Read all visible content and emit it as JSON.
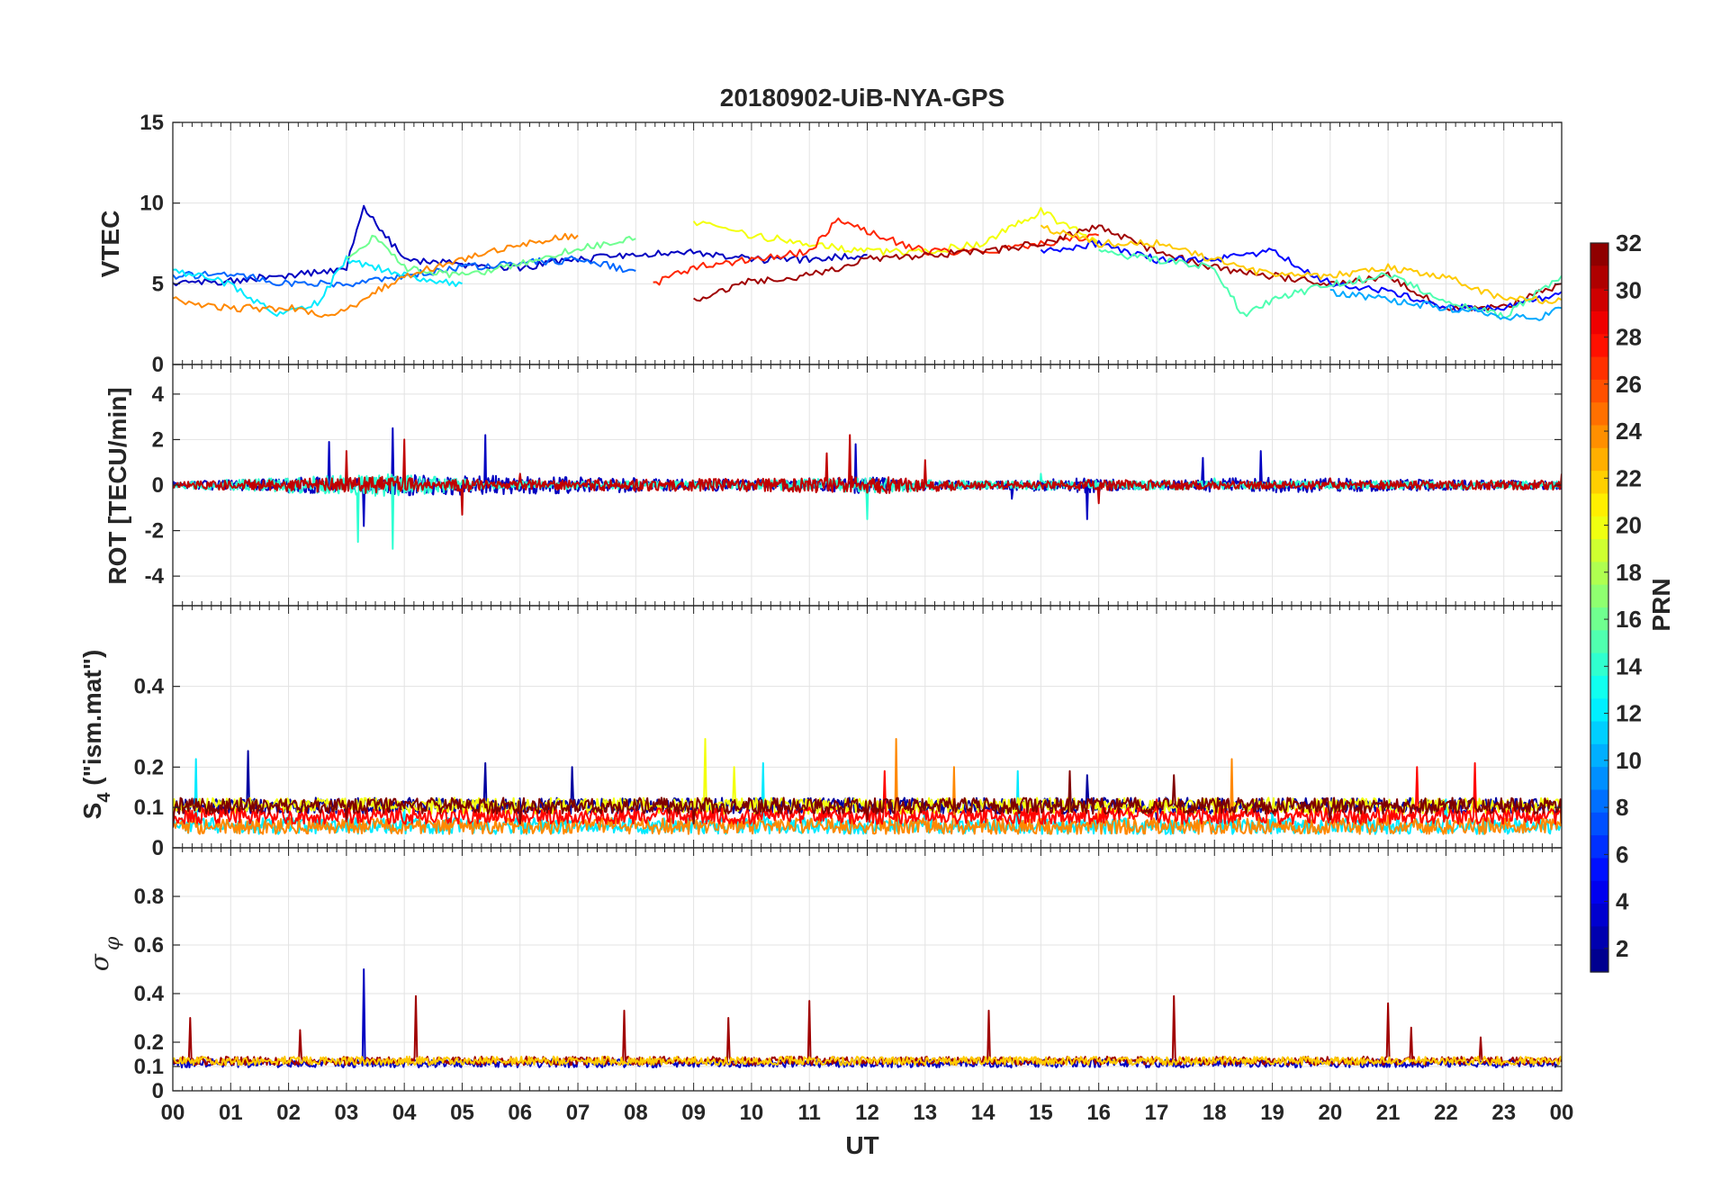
{
  "title": "20180902-UiB-NYA-GPS",
  "xlabel": "UT",
  "xticks": [
    "00",
    "01",
    "02",
    "03",
    "04",
    "05",
    "06",
    "07",
    "08",
    "09",
    "10",
    "11",
    "12",
    "13",
    "14",
    "15",
    "16",
    "17",
    "18",
    "19",
    "20",
    "21",
    "22",
    "23",
    "00"
  ],
  "colorbar": {
    "label": "PRN",
    "range": [
      1,
      32
    ],
    "ticks": [
      "2",
      "4",
      "6",
      "8",
      "10",
      "12",
      "14",
      "16",
      "18",
      "20",
      "22",
      "24",
      "26",
      "28",
      "30",
      "32"
    ],
    "colormap": "jet"
  },
  "chart_data": [
    {
      "type": "line",
      "panel": "VTEC",
      "ylabel": "VTEC",
      "ylim": [
        0,
        15
      ],
      "yticks": [
        "0",
        "5",
        "10",
        "15"
      ],
      "xlim": [
        0,
        24
      ],
      "grid": true,
      "series_note": "Multiple PRN traces colored by PRN number",
      "series": [
        {
          "prn": 3,
          "x": [
            0,
            1,
            2,
            3,
            3.3,
            4,
            5,
            6,
            7,
            8,
            9,
            10,
            11,
            12
          ],
          "values": [
            5.0,
            5.2,
            5.5,
            6.0,
            9.8,
            6.5,
            6.2,
            6.0,
            6.5,
            6.8,
            7.0,
            6.5,
            6.5,
            6.8
          ]
        },
        {
          "prn": 8,
          "x": [
            0,
            1,
            2,
            3,
            4,
            5,
            6,
            7,
            8
          ],
          "values": [
            5.5,
            5.6,
            5.0,
            5.0,
            5.5,
            6.0,
            6.3,
            6.5,
            5.8
          ]
        },
        {
          "prn": 12,
          "x": [
            0,
            1,
            1.8,
            2.5,
            3,
            4,
            5
          ],
          "values": [
            5.8,
            5.0,
            3.0,
            3.8,
            6.5,
            5.5,
            5.0
          ]
        },
        {
          "prn": 16,
          "x": [
            3,
            3.5,
            4,
            5,
            6,
            7,
            8
          ],
          "values": [
            6.5,
            8.0,
            6.0,
            5.5,
            6.2,
            7.2,
            7.8
          ]
        },
        {
          "prn": 20,
          "x": [
            9,
            10,
            11,
            12,
            13,
            14,
            15,
            15.5,
            16
          ],
          "values": [
            8.8,
            8.0,
            7.5,
            7.0,
            7.0,
            7.5,
            9.5,
            8.5,
            7.5
          ]
        },
        {
          "prn": 24,
          "x": [
            0,
            1,
            2,
            2.8,
            3.5,
            4,
            5,
            6,
            7
          ],
          "values": [
            4.0,
            3.5,
            3.5,
            3.0,
            4.5,
            5.5,
            6.5,
            7.5,
            8.0
          ]
        },
        {
          "prn": 27,
          "x": [
            8.3,
            9,
            10,
            11,
            11.5,
            12,
            13,
            14,
            15,
            16
          ],
          "values": [
            5.0,
            6.0,
            6.5,
            7.0,
            9.0,
            8.2,
            7.0,
            7.0,
            7.5,
            8.0
          ]
        },
        {
          "prn": 31,
          "x": [
            9,
            10,
            11,
            12,
            13,
            14,
            15,
            16,
            17,
            18,
            19,
            20,
            21,
            22,
            23,
            24
          ],
          "values": [
            4.0,
            5.2,
            5.5,
            6.5,
            6.8,
            7.0,
            7.5,
            8.5,
            7.0,
            6.0,
            5.5,
            5.0,
            5.5,
            3.5,
            3.5,
            5.0
          ]
        },
        {
          "prn": 5,
          "x": [
            15,
            16,
            17,
            18,
            19,
            20,
            21,
            22,
            23,
            24
          ],
          "values": [
            7.0,
            7.5,
            6.5,
            6.5,
            7.0,
            5.0,
            4.5,
            3.5,
            3.5,
            4.5
          ]
        },
        {
          "prn": 15,
          "x": [
            16,
            17,
            18,
            18.5,
            19,
            20,
            21,
            22,
            23,
            24
          ],
          "values": [
            7.0,
            6.5,
            6.0,
            3.0,
            4.0,
            5.0,
            5.5,
            4.0,
            3.0,
            5.5
          ]
        },
        {
          "prn": 22,
          "x": [
            15,
            16,
            17,
            18,
            19,
            20,
            21,
            22,
            23,
            24
          ],
          "values": [
            8.5,
            7.5,
            7.5,
            6.5,
            5.5,
            5.5,
            6.0,
            5.5,
            4.0,
            4.0
          ]
        },
        {
          "prn": 10,
          "x": [
            20,
            21,
            22,
            23,
            23.5,
            24
          ],
          "values": [
            4.5,
            4.0,
            3.5,
            3.0,
            2.8,
            3.5
          ]
        }
      ]
    },
    {
      "type": "line",
      "panel": "ROT",
      "ylabel": "ROT [TECU/min]",
      "ylim": [
        -5.3,
        5.3
      ],
      "yticks": [
        "-4",
        "-2",
        "0",
        "2",
        "4"
      ],
      "xlim": [
        0,
        24
      ],
      "grid": true,
      "series_note": "ROT fluctuations; enhanced 02-05 UT (peaks near ±2.5), 11-12 UT (~2), 15-16 UT (~-1.7)",
      "series": [
        {
          "prn": 3,
          "x": [
            0,
            2.7,
            3.3,
            3.8,
            5.4,
            11,
            11.8,
            14.5,
            15.8,
            17.8,
            18.8,
            24
          ],
          "values": [
            0,
            1.9,
            -1.8,
            2.5,
            2.2,
            0.3,
            1.8,
            -0.6,
            -1.5,
            1.2,
            1.5,
            0.2
          ]
        },
        {
          "prn": 14,
          "x": [
            0,
            3.2,
            3.8,
            6,
            9,
            12,
            15,
            18,
            21,
            24
          ],
          "values": [
            0,
            -2.5,
            -2.8,
            0.3,
            0.2,
            -1.5,
            0.5,
            0.3,
            0.2,
            0.2
          ]
        },
        {
          "prn": 30,
          "x": [
            0,
            3,
            4,
            5,
            6,
            11.3,
            11.7,
            13,
            16,
            20,
            24
          ],
          "values": [
            0,
            1.5,
            2.0,
            -1.3,
            0.5,
            1.4,
            2.2,
            1.1,
            -0.8,
            0.3,
            0.5
          ]
        }
      ]
    },
    {
      "type": "line",
      "panel": "S4",
      "ylabel": "S4 (\"ism.mat\")",
      "ylabel_main": "S",
      "ylabel_sub": "4",
      "ylabel_rest": " (\"ism.mat\")",
      "ylim": [
        0,
        0.6
      ],
      "yticks": [
        "0",
        "0.1",
        "0.2",
        "0.4"
      ],
      "xlim": [
        0,
        24
      ],
      "grid": true,
      "series_note": "Background ~0.05-0.1 with spikes to ~0.2-0.27",
      "series": [
        {
          "prn": 2,
          "x": [
            0,
            1.3,
            3,
            5.4,
            6.9,
            9,
            12,
            15.8,
            17,
            20,
            24
          ],
          "values": [
            0.05,
            0.24,
            0.08,
            0.21,
            0.2,
            0.07,
            0.08,
            0.18,
            0.07,
            0.07,
            0.06
          ]
        },
        {
          "prn": 12,
          "x": [
            0,
            0.4,
            2,
            4,
            6,
            9,
            10.2,
            13,
            14.6,
            16,
            19,
            22,
            24
          ],
          "values": [
            0.12,
            0.22,
            0.08,
            0.1,
            0.09,
            0.07,
            0.21,
            0.1,
            0.19,
            0.08,
            0.09,
            0.12,
            0.1
          ]
        },
        {
          "prn": 20,
          "x": [
            0,
            3,
            6,
            9.2,
            9.7,
            12,
            15,
            18,
            21,
            24
          ],
          "values": [
            0.07,
            0.09,
            0.06,
            0.27,
            0.2,
            0.07,
            0.1,
            0.08,
            0.09,
            0.07
          ]
        },
        {
          "prn": 24,
          "x": [
            0,
            3,
            6,
            9,
            12.5,
            13.5,
            16,
            18.3,
            21,
            24
          ],
          "values": [
            0.06,
            0.07,
            0.08,
            0.06,
            0.27,
            0.2,
            0.09,
            0.22,
            0.08,
            0.12
          ]
        },
        {
          "prn": 28,
          "x": [
            0,
            2,
            5,
            8,
            11,
            12.3,
            14,
            17,
            19,
            21.5,
            22.5,
            24
          ],
          "values": [
            0.06,
            0.07,
            0.08,
            0.07,
            0.1,
            0.19,
            0.07,
            0.12,
            0.09,
            0.2,
            0.21,
            0.08
          ]
        },
        {
          "prn": 32,
          "x": [
            0,
            3,
            6,
            9,
            12,
            15.5,
            17.3,
            20,
            24
          ],
          "values": [
            0.05,
            0.07,
            0.06,
            0.06,
            0.07,
            0.19,
            0.18,
            0.07,
            0.06
          ]
        }
      ]
    },
    {
      "type": "line",
      "panel": "sigma_phi",
      "ylabel": "σ φ",
      "ylabel_main": "σ",
      "ylabel_sub": "φ",
      "ylim": [
        0,
        1
      ],
      "yticks": [
        "0",
        "0.1",
        "0.2",
        "0.4",
        "0.6",
        "0.8"
      ],
      "xlim": [
        0,
        24
      ],
      "grid": true,
      "series_note": "Background ~0.1-0.15 with spikes",
      "series": [
        {
          "prn": 3,
          "x": [
            0,
            3.3,
            6,
            12,
            24
          ],
          "values": [
            0.12,
            0.5,
            0.12,
            0.12,
            0.12
          ]
        },
        {
          "prn": 31,
          "x": [
            0,
            0.3,
            2.2,
            4.2,
            7.8,
            9.6,
            11,
            14.1,
            17.3,
            21,
            21.4,
            22.6,
            24
          ],
          "values": [
            0.13,
            0.3,
            0.25,
            0.39,
            0.33,
            0.3,
            0.37,
            0.33,
            0.39,
            0.36,
            0.26,
            0.22,
            0.12
          ]
        },
        {
          "prn": 22,
          "x": [
            0,
            6,
            12,
            18,
            24
          ],
          "values": [
            0.13,
            0.12,
            0.13,
            0.12,
            0.13
          ]
        }
      ]
    }
  ]
}
